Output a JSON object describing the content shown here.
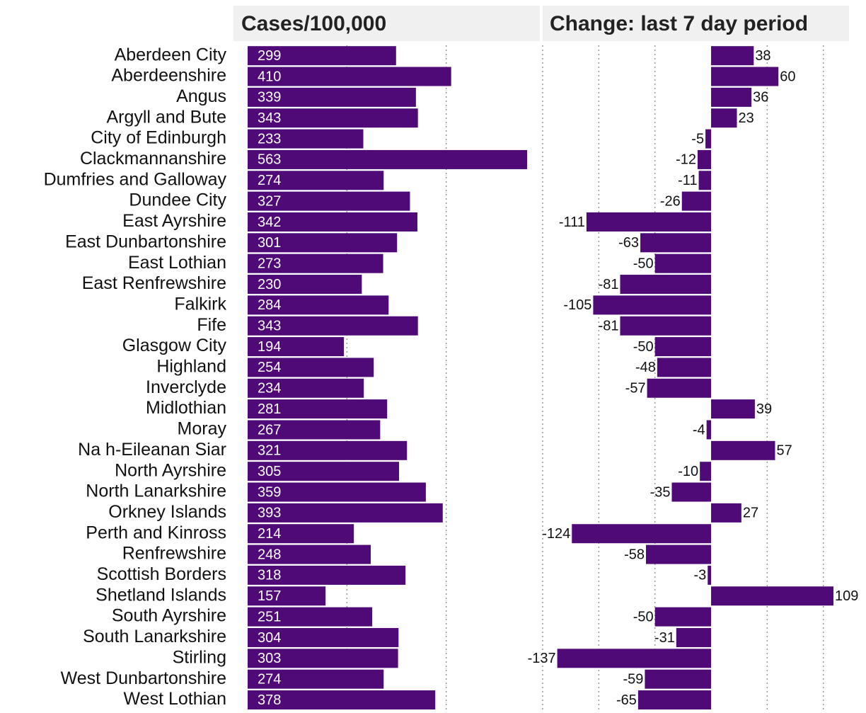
{
  "chart_data": [
    {
      "type": "bar",
      "orientation": "horizontal",
      "title": "Cases/100,000",
      "color": "#500a78",
      "categories": [
        "Aberdeen City",
        "Aberdeenshire",
        "Angus",
        "Argyll and Bute",
        "City of Edinburgh",
        "Clackmannanshire",
        "Dumfries and Galloway",
        "Dundee City",
        "East Ayrshire",
        "East Dunbartonshire",
        "East Lothian",
        "East Renfrewshire",
        "Falkirk",
        "Fife",
        "Glasgow City",
        "Highland",
        "Inverclyde",
        "Midlothian",
        "Moray",
        "Na h-Eileanan Siar",
        "North Ayrshire",
        "North Lanarkshire",
        "Orkney Islands",
        "Perth and Kinross",
        "Renfrewshire",
        "Scottish Borders",
        "Shetland Islands",
        "South Ayrshire",
        "South Lanarkshire",
        "Stirling",
        "West Dunbartonshire",
        "West Lothian"
      ],
      "values": [
        299,
        410,
        339,
        343,
        233,
        563,
        274,
        327,
        342,
        301,
        273,
        230,
        284,
        343,
        194,
        254,
        234,
        281,
        267,
        321,
        305,
        359,
        393,
        214,
        248,
        318,
        157,
        251,
        304,
        303,
        274,
        378
      ],
      "xlim": [
        0,
        600
      ],
      "xticks": [
        200,
        400
      ],
      "grid": true
    },
    {
      "type": "bar",
      "orientation": "horizontal",
      "title": "Change: last 7 day period",
      "color": "#500a78",
      "values": [
        38,
        60,
        36,
        23,
        -5,
        -12,
        -11,
        -26,
        -111,
        -63,
        -50,
        -81,
        -105,
        -81,
        -50,
        -48,
        -57,
        39,
        -4,
        57,
        -10,
        -35,
        27,
        -124,
        -58,
        -3,
        109,
        -50,
        -31,
        -137,
        -59,
        -65
      ],
      "xlim": [
        -150,
        115
      ],
      "xticks": [
        -150,
        -100,
        -50,
        50,
        100
      ],
      "grid": true
    }
  ]
}
